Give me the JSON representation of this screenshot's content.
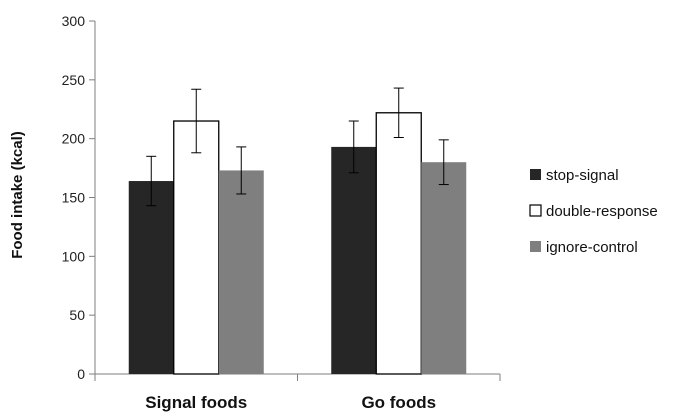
{
  "chart_data": {
    "type": "bar",
    "title": "",
    "xlabel": "",
    "ylabel": "Food intake (kcal)",
    "ylim": [
      0,
      300
    ],
    "yticks": [
      0,
      50,
      100,
      150,
      200,
      250,
      300
    ],
    "grid": false,
    "legend_position": "right",
    "categories": [
      "Signal foods",
      "Go foods"
    ],
    "series": [
      {
        "name": "stop-signal",
        "color": "#262626",
        "fill": "#262626",
        "values": [
          164,
          193
        ],
        "error": [
          21,
          22
        ]
      },
      {
        "name": "double-response",
        "color": "#000000",
        "fill": "#ffffff",
        "values": [
          215,
          222
        ],
        "error": [
          27,
          21
        ]
      },
      {
        "name": "ignore-control",
        "color": "#7f7f7f",
        "fill": "#7f7f7f",
        "values": [
          173,
          180
        ],
        "error": [
          20,
          19
        ]
      }
    ]
  }
}
